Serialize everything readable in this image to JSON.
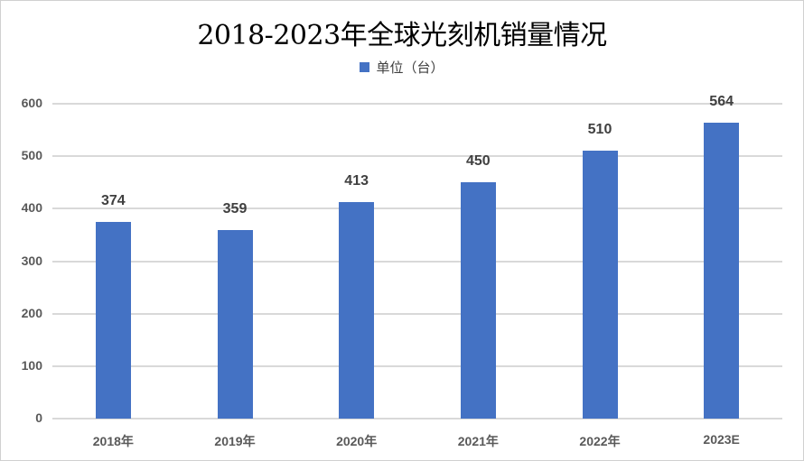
{
  "chart_data": {
    "type": "bar",
    "title": "2018-2023年全球光刻机销量情况",
    "legend": [
      "单位（台）"
    ],
    "legend_position": "top",
    "categories": [
      "2018年",
      "2019年",
      "2020年",
      "2021年",
      "2022年",
      "2023E"
    ],
    "series": [
      {
        "name": "单位（台）",
        "values": [
          374,
          359,
          413,
          450,
          510,
          564
        ],
        "color": "#4472c4"
      }
    ],
    "xlabel": "",
    "ylabel": "",
    "ylim": [
      0,
      600
    ],
    "yticks": [
      "0",
      "100",
      "200",
      "300",
      "400",
      "500",
      "600"
    ],
    "grid": true,
    "data_labels": [
      "374",
      "359",
      "413",
      "450",
      "510",
      "564"
    ]
  }
}
